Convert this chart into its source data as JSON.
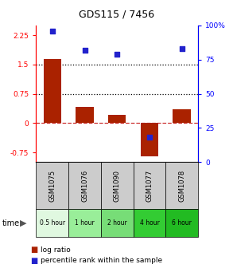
{
  "title": "GDS115 / 7456",
  "samples": [
    "GSM1075",
    "GSM1076",
    "GSM1090",
    "GSM1077",
    "GSM1078"
  ],
  "time_labels": [
    "0.5 hour",
    "1 hour",
    "2 hour",
    "4 hour",
    "6 hour"
  ],
  "time_colors": [
    "#e0f8e0",
    "#99ee99",
    "#77dd77",
    "#33cc33",
    "#22bb22"
  ],
  "log_ratio": [
    1.65,
    0.42,
    0.22,
    -0.85,
    0.35
  ],
  "percentile": [
    96,
    82,
    79,
    18,
    83
  ],
  "bar_color": "#aa2200",
  "dot_color": "#2222cc",
  "ylim_left": [
    -1.0,
    2.5
  ],
  "ylim_right": [
    0,
    100
  ],
  "yticks_left": [
    -0.75,
    0,
    0.75,
    1.5,
    2.25
  ],
  "yticks_right": [
    0,
    25,
    50,
    75,
    100
  ],
  "hline_y": [
    0.75,
    1.5
  ],
  "zero_line_y": 0,
  "sample_box_color": "#cccccc",
  "legend_log_ratio_label": "log ratio",
  "legend_percentile_label": "percentile rank within the sample"
}
